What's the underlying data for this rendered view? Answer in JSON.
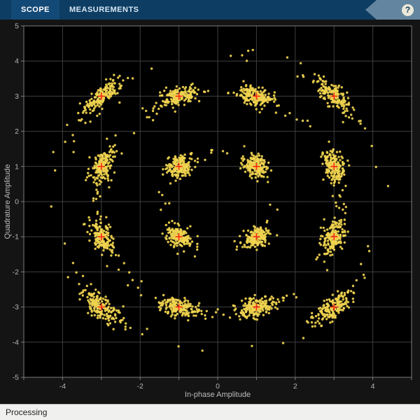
{
  "toolbar": {
    "tabs": [
      {
        "label": "SCOPE"
      },
      {
        "label": "MEASUREMENTS"
      }
    ],
    "help_label": "?",
    "background": "#0d3d63"
  },
  "status": {
    "text": "Processing"
  },
  "chart_data": {
    "type": "scatter",
    "title": "",
    "xlabel": "In-phase Amplitude",
    "ylabel": "Quadrature Amplitude",
    "xlim": [
      -5,
      5
    ],
    "ylim": [
      -5,
      5
    ],
    "x_tick_labels": [
      -4,
      -2,
      0,
      2,
      4
    ],
    "y_tick_labels": [
      -5,
      -4,
      -3,
      -2,
      -1,
      0,
      1,
      2,
      3,
      4,
      5
    ],
    "grid": true,
    "modulation": "16-QAM",
    "constellation_centers": [
      [
        -3,
        3
      ],
      [
        -1,
        3
      ],
      [
        1,
        3
      ],
      [
        3,
        3
      ],
      [
        -3,
        1
      ],
      [
        -1,
        1
      ],
      [
        1,
        1
      ],
      [
        3,
        1
      ],
      [
        -3,
        -1
      ],
      [
        -1,
        -1
      ],
      [
        1,
        -1
      ],
      [
        3,
        -1
      ],
      [
        -3,
        -3
      ],
      [
        -1,
        -3
      ],
      [
        1,
        -3
      ],
      [
        3,
        -3
      ]
    ],
    "reference_marker": "+",
    "points_per_cluster": 185,
    "noise": {
      "awgn_sigma": 0.13,
      "phase_sigma": 0.07,
      "phase_tail_sigma": 0.38,
      "phase_tail_fraction": 0.1,
      "seed": 42
    },
    "colors": {
      "points": "#f0d44f",
      "reference": "#fb2a16",
      "grid": "#3f3f3f",
      "axes_bg": "#000000",
      "figure_bg": "#141414",
      "tick_text": "#b6b6b6",
      "axis_border": "#7d7d7d"
    }
  }
}
